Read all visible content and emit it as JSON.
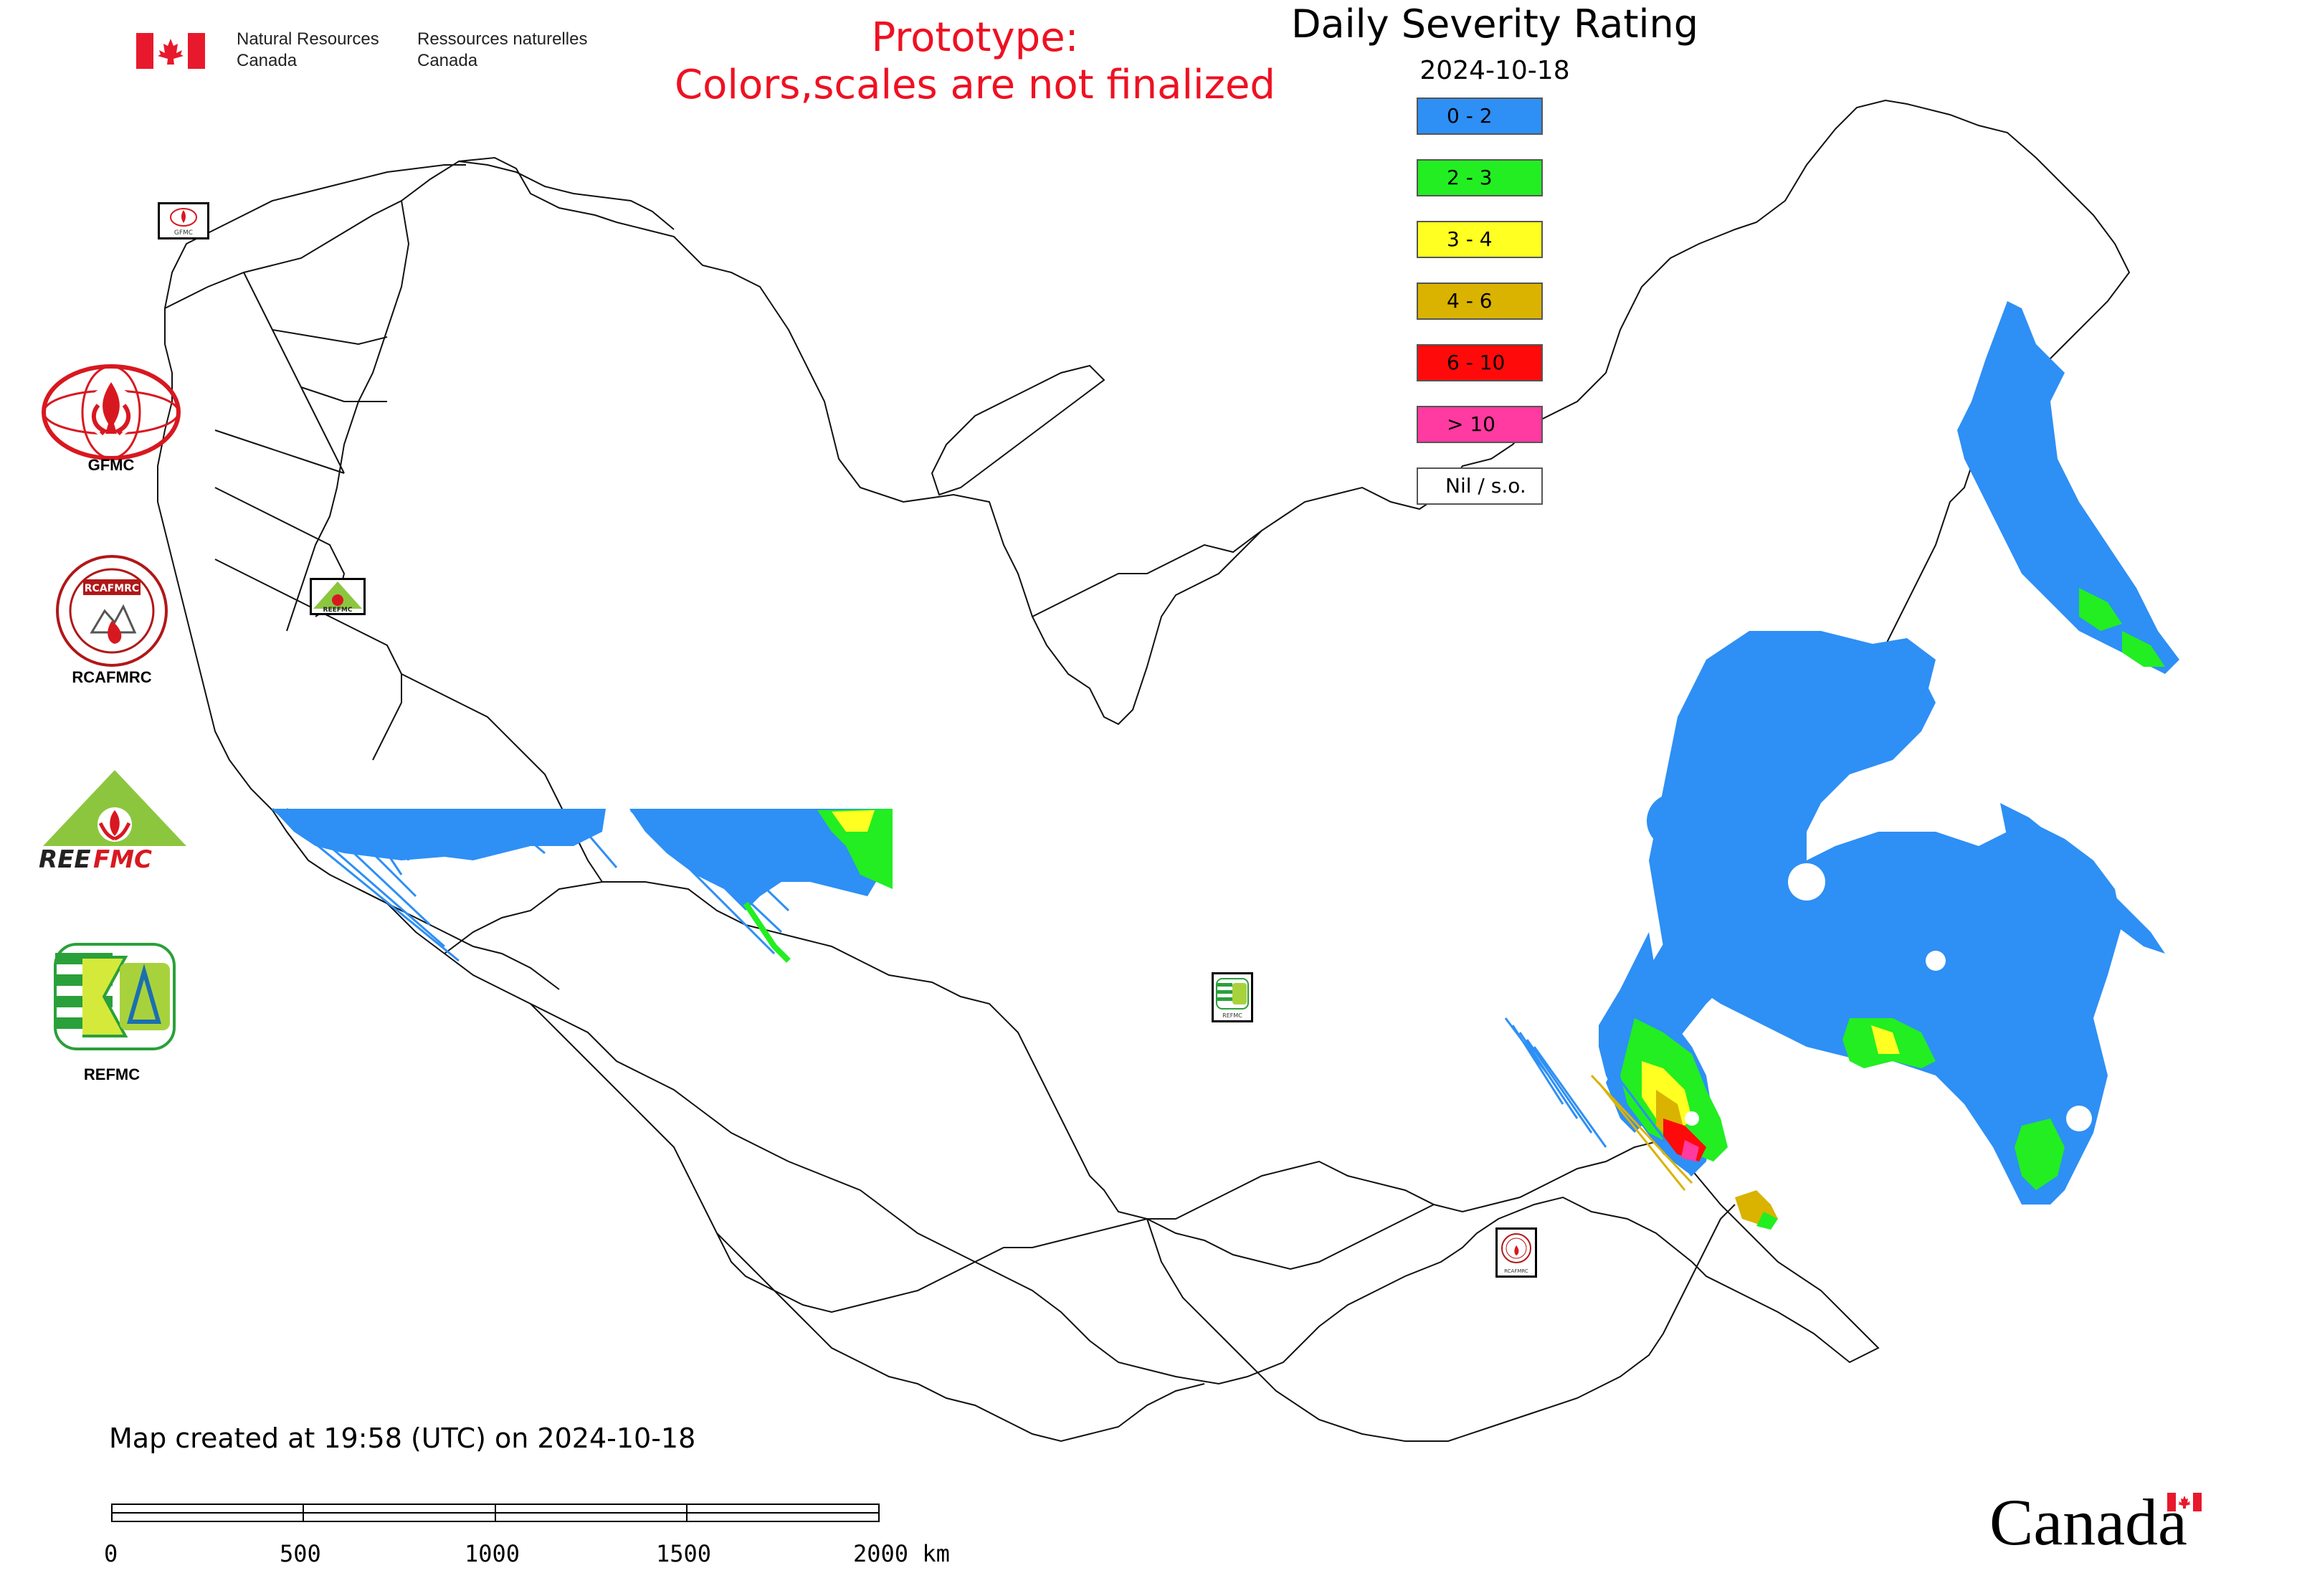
{
  "header": {
    "agency_en": [
      "Natural Resources",
      "Canada"
    ],
    "agency_fr": [
      "Ressources naturelles",
      "Canada"
    ],
    "prototype_notice": [
      "Prototype:",
      "Colors,scales are not finalized"
    ]
  },
  "legend": {
    "title": "Daily Severity Rating",
    "date": "2024-10-18",
    "classes": [
      {
        "label": "0 - 2",
        "color": "#2e8ff5"
      },
      {
        "label": "2 - 3",
        "color": "#22ee22"
      },
      {
        "label": "3 - 4",
        "color": "#ffff22"
      },
      {
        "label": "4 - 6",
        "color": "#d9b300"
      },
      {
        "label": "6 - 10",
        "color": "#ff0a0a"
      },
      {
        "label": "> 10",
        "color": "#ff3aa0"
      },
      {
        "label": "Nil / s.o.",
        "color": "#ffffff"
      }
    ]
  },
  "logos": [
    {
      "label": "GFMC",
      "icon": "gfmc-logo"
    },
    {
      "label": "RCAFMRC",
      "icon": "rcafmrc-logo"
    },
    {
      "label": "",
      "icon": "reefmc-logo",
      "wordmark": "REEFMC"
    },
    {
      "label": "REFMC",
      "icon": "refmc-logo"
    }
  ],
  "map_markers": [
    {
      "icon": "gfmc-marker",
      "caption": "GFMC"
    },
    {
      "icon": "reefmc-marker",
      "caption": "REEFMC"
    },
    {
      "icon": "refmc-marker",
      "caption": "REFMC"
    },
    {
      "icon": "rcafmrc-marker",
      "caption": "RCAFMRC"
    }
  ],
  "footer": {
    "created_text": "Map created at 19:58 (UTC) on 2024-10-18",
    "scale_labels": [
      "0",
      "500",
      "1000",
      "1500",
      "2000 km"
    ],
    "wordmark": "Canada"
  }
}
